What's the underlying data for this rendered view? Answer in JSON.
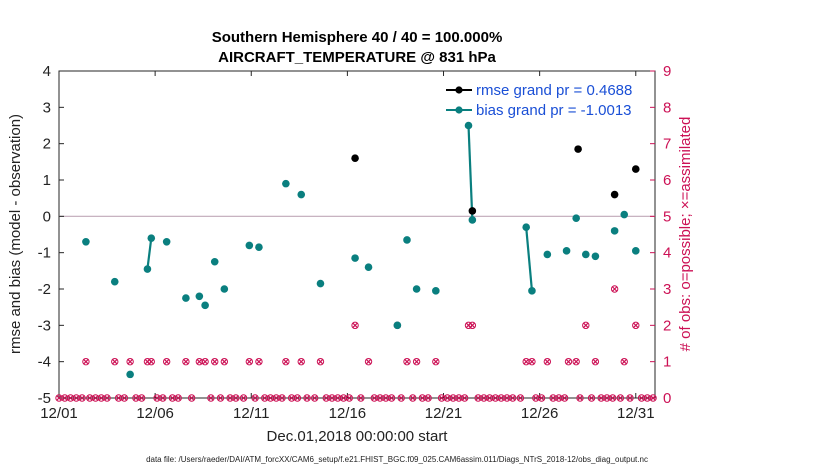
{
  "chart_data": {
    "type": "scatter",
    "title_line1": "Southern Hemisphere 40 / 40 = 100.000%",
    "title_line2": "AIRCRAFT_TEMPERATURE @ 831 hPa",
    "xlabel": "Dec.01,2018 00:00:00 start",
    "ylabel": "rmse and bias (model - observation)",
    "ylabel_right": "# of obs: o=possible; ×=assimilated",
    "xlim": [
      1,
      32
    ],
    "ylim": [
      -5,
      4
    ],
    "ylim_right": [
      0,
      9
    ],
    "x_ticks": [
      1,
      6,
      11,
      16,
      21,
      26,
      31
    ],
    "x_tick_labels": [
      "12/01",
      "12/06",
      "12/11",
      "12/16",
      "12/21",
      "12/26",
      "12/31"
    ],
    "y_ticks": [
      -5,
      -4,
      -3,
      -2,
      -1,
      0,
      1,
      2,
      3,
      4
    ],
    "y_tick_labels": [
      "-5",
      "-4",
      "-3",
      "-2",
      "-1",
      "0",
      "1",
      "2",
      "3",
      "4"
    ],
    "y_right_ticks": [
      0,
      1,
      2,
      3,
      4,
      5,
      6,
      7,
      8,
      9
    ],
    "y_right_tick_labels": [
      "0",
      "1",
      "2",
      "3",
      "4",
      "5",
      "6",
      "7",
      "8",
      "9"
    ],
    "legend_position": "top-right",
    "colors": {
      "rmse": "#000000",
      "bias": "#0a7f7f",
      "counts": "#cc1155",
      "zero_line": "#c0a8b8"
    },
    "series": [
      {
        "name": "rmse grand pr = 0.4688",
        "style": "markers+lines",
        "x": [
          16.4,
          22.5,
          28.0,
          29.9,
          31.0
        ],
        "y": [
          1.6,
          0.15,
          1.85,
          0.6,
          1.3
        ]
      },
      {
        "name": "bias grand pr = -1.0013",
        "style": "markers+lines",
        "x": [
          2.4,
          3.9,
          4.7,
          5.6,
          5.8,
          6.6,
          7.6,
          8.3,
          8.6,
          9.1,
          9.6,
          10.9,
          11.4,
          12.8,
          13.6,
          14.6,
          16.4,
          17.1,
          18.6,
          19.1,
          19.6,
          20.6,
          22.3,
          22.5,
          25.3,
          25.6,
          26.4,
          27.4,
          27.9,
          28.4,
          28.9,
          29.9,
          30.4,
          31.0
        ],
        "y": [
          -0.7,
          -1.8,
          -4.35,
          -1.45,
          -0.6,
          -0.7,
          -2.25,
          -2.2,
          -2.45,
          -1.25,
          -2.0,
          -0.8,
          -0.85,
          0.9,
          0.6,
          -1.85,
          -1.15,
          -1.4,
          -3.0,
          -0.65,
          -2.0,
          -2.05,
          2.5,
          -0.1,
          -0.3,
          -2.05,
          -1.05,
          -0.95,
          -0.05,
          -1.05,
          -1.1,
          -0.4,
          0.05,
          -0.95
        ],
        "segments": [
          [
            3,
            4
          ],
          [
            22,
            23
          ],
          [
            24,
            25
          ]
        ]
      },
      {
        "name": "# of obs possible / assimilated",
        "style": "markers",
        "x": [
          1.0,
          1.3,
          1.6,
          1.9,
          2.2,
          2.4,
          2.6,
          2.9,
          3.2,
          3.5,
          3.9,
          4.1,
          4.4,
          4.7,
          5.0,
          5.3,
          5.6,
          5.8,
          6.1,
          6.4,
          6.6,
          6.9,
          7.2,
          7.6,
          7.9,
          8.3,
          8.6,
          8.9,
          9.1,
          9.4,
          9.6,
          9.9,
          10.2,
          10.6,
          10.9,
          11.2,
          11.4,
          11.7,
          12.0,
          12.3,
          12.6,
          12.8,
          13.1,
          13.4,
          13.6,
          13.9,
          14.3,
          14.6,
          14.9,
          15.2,
          15.5,
          15.8,
          16.1,
          16.4,
          16.7,
          17.1,
          17.4,
          17.7,
          18.0,
          18.3,
          18.6,
          18.8,
          19.1,
          19.4,
          19.6,
          19.9,
          20.2,
          20.6,
          20.9,
          21.2,
          21.5,
          21.8,
          22.1,
          22.3,
          22.5,
          22.8,
          23.1,
          23.4,
          23.7,
          24.0,
          24.3,
          24.6,
          25.0,
          25.3,
          25.6,
          25.8,
          26.1,
          26.4,
          26.7,
          27.0,
          27.3,
          27.5,
          27.9,
          28.1,
          28.4,
          28.7,
          28.9,
          29.2,
          29.5,
          29.8,
          29.9,
          30.2,
          30.4,
          30.7,
          31.0,
          31.3,
          31.6,
          31.9
        ],
        "y": [
          0,
          0,
          0,
          0,
          0,
          1,
          0,
          0,
          0,
          0,
          1,
          0,
          0,
          1,
          0,
          0,
          1,
          1,
          0,
          0,
          1,
          0,
          0,
          1,
          0,
          1,
          1,
          0,
          1,
          0,
          1,
          0,
          0,
          0,
          1,
          0,
          1,
          0,
          0,
          0,
          0,
          1,
          0,
          0,
          1,
          0,
          0,
          1,
          0,
          0,
          0,
          0,
          0,
          2,
          0,
          1,
          0,
          0,
          0,
          0,
          2,
          0,
          1,
          0,
          1,
          0,
          0,
          1,
          0,
          0,
          0,
          0,
          0,
          2,
          2,
          0,
          0,
          0,
          0,
          0,
          0,
          0,
          0,
          1,
          1,
          0,
          0,
          1,
          0,
          0,
          0,
          1,
          1,
          0,
          2,
          0,
          1,
          0,
          0,
          0,
          3,
          0,
          1,
          0,
          2,
          0,
          0,
          0
        ]
      }
    ],
    "footer": "data file: /Users/raeder/DAI/ATM_forcXX/CAM6_setup/f.e21.FHIST_BGC.f09_025.CAM6assim.011/Diags_NTrS_2018-12/obs_diag_output.nc"
  }
}
